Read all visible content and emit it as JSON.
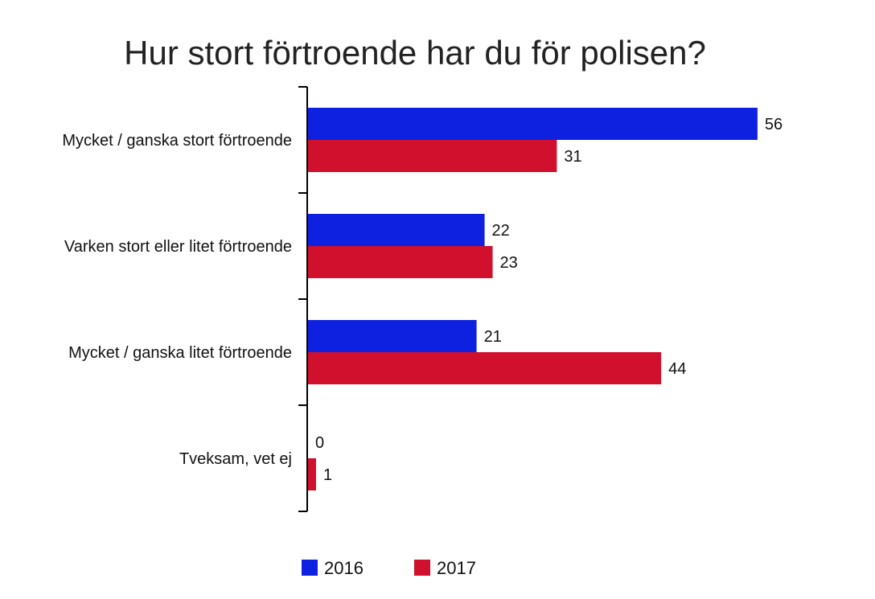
{
  "chart_data": {
    "type": "bar",
    "orientation": "horizontal",
    "title": "Hur stort förtroende har du för polisen?",
    "xlabel": "",
    "ylabel": "",
    "categories": [
      "Mycket / ganska stort förtroende",
      "Varken stort eller litet förtroende",
      "Mycket / ganska litet förtroende",
      "Tveksam, vet ej"
    ],
    "series": [
      {
        "name": "2016",
        "color": "#0f21e0",
        "values": [
          56,
          22,
          21,
          0
        ]
      },
      {
        "name": "2017",
        "color": "#d0102c",
        "values": [
          31,
          23,
          44,
          1
        ]
      }
    ],
    "xlim": [
      0,
      70
    ],
    "grid": false,
    "legend": "bottom-center",
    "data_labels": true
  }
}
